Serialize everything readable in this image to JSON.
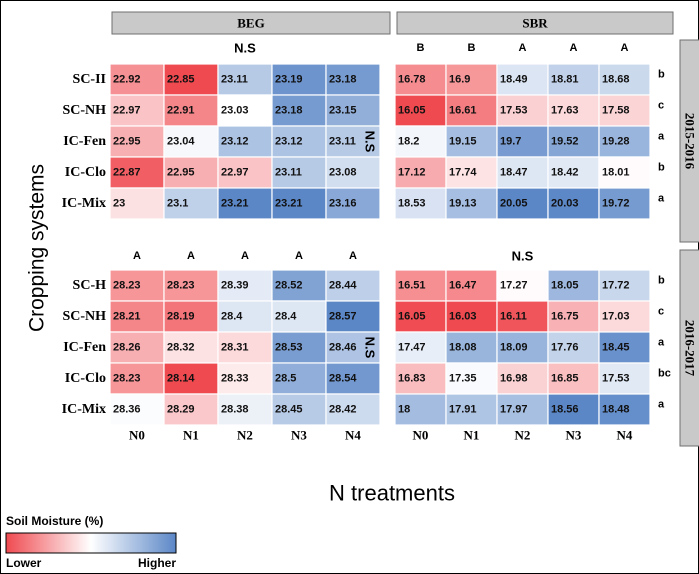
{
  "chart_data": {
    "type": "heatmap",
    "y_axis_label": "Cropping systems",
    "x_axis_label": "N treatments",
    "facet_columns": [
      "BEG",
      "SBR"
    ],
    "facet_rows": [
      "2015-2016",
      "2016-2017"
    ],
    "x_categories": [
      "N0",
      "N1",
      "N2",
      "N3",
      "N4"
    ],
    "color_scale": {
      "title": "Soil Moisture (%)",
      "low_label": "Lower",
      "high_label": "Higher",
      "low_color": "#ef4a50",
      "mid_color": "#ffffff",
      "high_color": "#5b87c7"
    },
    "panels": [
      {
        "crop": "BEG",
        "year": "2015-2016",
        "rows": [
          "SC-II",
          "SC-NH",
          "IC-Fen",
          "IC-Clo",
          "IC-Mix"
        ],
        "values": [
          [
            "22.92",
            "22.85",
            "23.11",
            "23.19",
            "23.18"
          ],
          [
            "22.97",
            "22.91",
            "23.03",
            "23.18",
            "23.15"
          ],
          [
            "22.95",
            "23.04",
            "23.12",
            "23.12",
            "23.11"
          ],
          [
            "22.87",
            "22.95",
            "22.97",
            "23.11",
            "23.08"
          ],
          [
            "23",
            "23.1",
            "23.21",
            "23.21",
            "23.16"
          ]
        ],
        "top_labels": [
          "N.S"
        ],
        "row_letters": [],
        "side_label": "N.S"
      },
      {
        "crop": "SBR",
        "year": "2015-2016",
        "rows": [
          "SC-II",
          "SC-NH",
          "IC-Fen",
          "IC-Clo",
          "IC-Mix"
        ],
        "values": [
          [
            "16.78",
            "16.9",
            "18.49",
            "18.81",
            "18.68"
          ],
          [
            "16.05",
            "16.61",
            "17.53",
            "17.63",
            "17.58"
          ],
          [
            "18.2",
            "19.15",
            "19.7",
            "19.52",
            "19.28"
          ],
          [
            "17.12",
            "17.74",
            "18.47",
            "18.42",
            "18.01"
          ],
          [
            "18.53",
            "19.13",
            "20.05",
            "20.03",
            "19.72"
          ]
        ],
        "top_labels": [
          "B",
          "B",
          "A",
          "A",
          "A"
        ],
        "row_letters": [
          "b",
          "c",
          "a",
          "b",
          "a"
        ],
        "side_label": ""
      },
      {
        "crop": "BEG",
        "year": "2016-2017",
        "rows": [
          "SC-H",
          "SC-NH",
          "IC-Fen",
          "IC-Clo",
          "IC-Mix"
        ],
        "values": [
          [
            "28.23",
            "28.23",
            "28.39",
            "28.52",
            "28.44"
          ],
          [
            "28.21",
            "28.19",
            "28.4",
            "28.4",
            "28.57"
          ],
          [
            "28.26",
            "28.32",
            "28.31",
            "28.53",
            "28.46"
          ],
          [
            "28.23",
            "28.14",
            "28.33",
            "28.5",
            "28.54"
          ],
          [
            "28.36",
            "28.29",
            "28.38",
            "28.45",
            "28.42"
          ]
        ],
        "top_labels": [
          "A",
          "A",
          "A",
          "A",
          "A"
        ],
        "row_letters": [],
        "side_label": "N.S"
      },
      {
        "crop": "SBR",
        "year": "2016-2017",
        "rows": [
          "SC-H",
          "SC-NH",
          "IC-Fen",
          "IC-Clo",
          "IC-Mix"
        ],
        "values": [
          [
            "16.51",
            "16.47",
            "17.27",
            "18.05",
            "17.72"
          ],
          [
            "16.05",
            "16.03",
            "16.11",
            "16.75",
            "17.03"
          ],
          [
            "17.47",
            "18.08",
            "18.09",
            "17.76",
            "18.45"
          ],
          [
            "16.83",
            "17.35",
            "16.98",
            "16.85",
            "17.53"
          ],
          [
            "18",
            "17.91",
            "17.97",
            "18.56",
            "18.48"
          ]
        ],
        "top_labels": [
          "N.S"
        ],
        "row_letters": [
          "b",
          "c",
          "a",
          "bc",
          "a"
        ],
        "side_label": ""
      }
    ]
  }
}
